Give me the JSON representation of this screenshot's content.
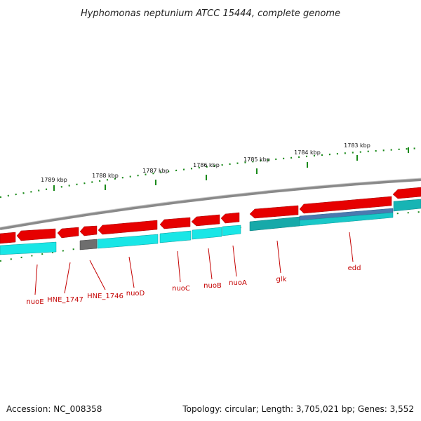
{
  "title": "Hyphomonas neptunium ATCC 15444, complete genome",
  "footer": {
    "accession": "Accession: NC_008358",
    "summary": "Topology: circular; Length: 3,705,021 bp; Genes: 3,552"
  },
  "scale_labels": [
    "1789 kbp",
    "1788 kbp",
    "1787 kbp",
    "1786 kbp",
    "1785 kbp",
    "1784 kbp",
    "1783 kbp"
  ],
  "colors": {
    "forward_strand": "#e60000",
    "reverse_strand": "#19e6e6",
    "teal_gene": "#17a9a9",
    "pseudo_gene": "#6e6e6e",
    "blue_gene": "#4a7ab0",
    "backbone": "#888888",
    "tick": "#1a8a1a",
    "label": "#c40000"
  },
  "genes": [
    {
      "name": "nuoE"
    },
    {
      "name": "HNE_1747"
    },
    {
      "name": "HNE_1746"
    },
    {
      "name": "nuoD"
    },
    {
      "name": "nuoC"
    },
    {
      "name": "nuoB"
    },
    {
      "name": "nuoA"
    },
    {
      "name": "glk"
    },
    {
      "name": "edd"
    }
  ]
}
